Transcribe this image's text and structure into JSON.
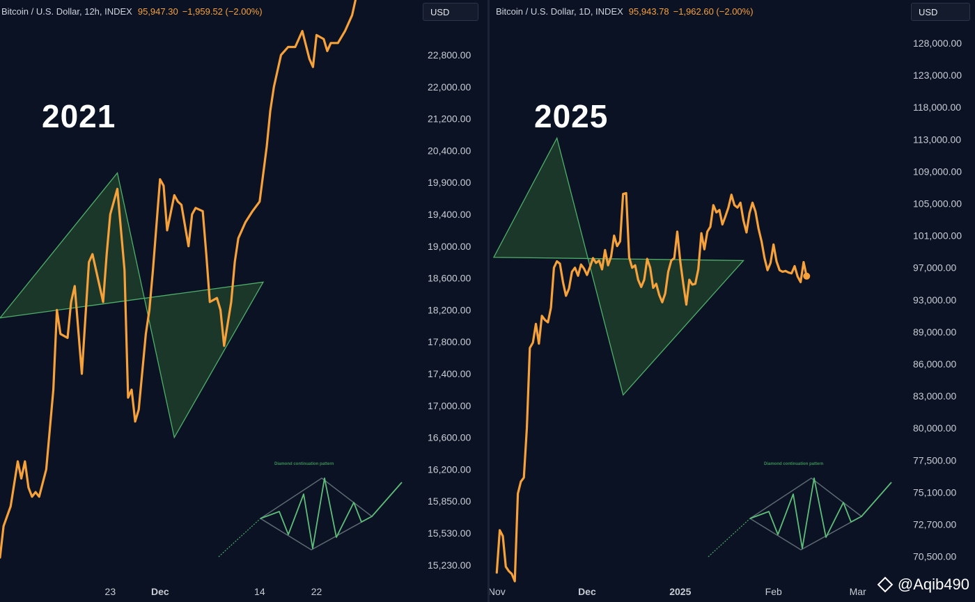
{
  "watermark": "@Aqib490",
  "chart_data": [
    {
      "type": "line",
      "title": "2021",
      "header": {
        "symbol": "Bitcoin / U.S. Dollar, 12h, INDEX",
        "price": "95,947.30",
        "change": "−1,959.52 (−2.00%)"
      },
      "currency": "USD",
      "y_tick_labels": [
        "22,800.00",
        "22,000.00",
        "21,200.00",
        "20,400.00",
        "19,900.00",
        "19,400.00",
        "19,000.00",
        "18,600.00",
        "18,200.00",
        "17,800.00",
        "17,400.00",
        "17,000.00",
        "16,600.00",
        "16,200.00",
        "15,850.00",
        "15,530.00",
        "15,230.00"
      ],
      "y_tick_values": [
        22800,
        22000,
        21200,
        20400,
        19900,
        19400,
        19000,
        18600,
        18200,
        17800,
        17400,
        17000,
        16600,
        16200,
        15850,
        15530,
        15230
      ],
      "x_tick_labels": [
        "23",
        "Dec",
        "14",
        "22"
      ],
      "x_tick_values": [
        23,
        30,
        44,
        52
      ],
      "xlim": [
        7.5,
        63.5
      ],
      "x": [
        7.5,
        8,
        9,
        10,
        10.5,
        11,
        11.5,
        12,
        12.5,
        13,
        14,
        15,
        15.5,
        16,
        17,
        17.5,
        18,
        19,
        20,
        20.5,
        21,
        22,
        22.5,
        23,
        24,
        25,
        25.5,
        26,
        26.5,
        27,
        28,
        28.5,
        29,
        30,
        30.5,
        31,
        32,
        32.5,
        33,
        34,
        34.5,
        35,
        36,
        36.5,
        37,
        38,
        38.5,
        39,
        40,
        40.5,
        41,
        42,
        43,
        44,
        45,
        45.5,
        46,
        47,
        47.5,
        48,
        49,
        49.5,
        50,
        51,
        51.5,
        52,
        53,
        53.5,
        54,
        55,
        56,
        57,
        57.5
      ],
      "y": [
        15300,
        15600,
        15800,
        16300,
        16100,
        16300,
        16000,
        15900,
        15950,
        15900,
        16200,
        17200,
        18200,
        17900,
        17850,
        18300,
        18500,
        17400,
        18800,
        18900,
        18700,
        18300,
        18900,
        19400,
        19800,
        18700,
        17100,
        17200,
        16800,
        16950,
        17900,
        18200,
        18700,
        19950,
        19850,
        19200,
        19700,
        19600,
        19550,
        19000,
        19400,
        19500,
        19450,
        18900,
        18300,
        18350,
        18200,
        17750,
        18300,
        18800,
        19100,
        19300,
        19450,
        19600,
        20500,
        21400,
        22000,
        22800,
        22900,
        23000,
        23000,
        23200,
        23400,
        22700,
        22500,
        23300,
        23200,
        22900,
        23100,
        23100,
        23400,
        23800,
        24200
      ],
      "diamond": [
        [
          7.5,
          18100
        ],
        [
          24,
          20050
        ],
        [
          32,
          16600
        ],
        [
          44.5,
          18550
        ]
      ],
      "inset": {
        "title": "Diamond continuation pattern"
      }
    },
    {
      "type": "line",
      "title": "2025",
      "header": {
        "symbol": "Bitcoin / U.S. Dollar, 1D, INDEX",
        "price": "95,943.78",
        "change": "−1,962.60 (−2.00%)"
      },
      "currency": "USD",
      "y_tick_labels": [
        "128,000.00",
        "123,000.00",
        "118,000.00",
        "113,000.00",
        "109,000.00",
        "105,000.00",
        "101,000.00",
        "97,000.00",
        "93,000.00",
        "89,000.00",
        "86,000.00",
        "83,000.00",
        "80,000.00",
        "77,500.00",
        "75,100.00",
        "72,700.00",
        "70,500.00"
      ],
      "y_tick_values": [
        128000,
        123000,
        118000,
        113000,
        109000,
        105000,
        101000,
        97000,
        93000,
        89000,
        86000,
        83000,
        80000,
        77500,
        75100,
        72700,
        70500
      ],
      "x_tick_labels": [
        "Nov",
        "Dec",
        "2025",
        "Feb",
        "Mar"
      ],
      "x_tick_values": [
        1,
        31,
        62,
        93,
        121
      ],
      "xlim": [
        0,
        122
      ],
      "x": [
        1,
        2,
        3,
        4,
        5,
        6,
        7,
        8,
        9,
        10,
        11,
        12,
        13,
        14,
        15,
        16,
        17,
        18,
        19,
        20,
        21,
        22,
        23,
        24,
        25,
        26,
        27,
        28,
        29,
        30,
        31,
        32,
        33,
        34,
        35,
        36,
        37,
        38,
        39,
        40,
        41,
        42,
        43,
        44,
        45,
        46,
        47,
        48,
        49,
        50,
        51,
        52,
        53,
        54,
        55,
        56,
        57,
        58,
        59,
        60,
        61,
        62,
        63,
        64,
        65,
        66,
        67,
        68,
        69,
        70,
        71,
        72,
        73,
        74,
        75,
        76,
        77,
        78,
        79,
        80,
        81,
        82,
        83,
        84,
        85,
        86,
        87,
        88,
        89,
        90,
        91,
        92,
        93,
        94,
        95,
        96,
        97,
        98,
        99,
        100,
        101,
        102,
        103,
        104
      ],
      "y": [
        69400,
        72300,
        71900,
        69800,
        69500,
        69300,
        68800,
        75000,
        75900,
        76200,
        80000,
        87500,
        88000,
        90000,
        87900,
        91000,
        90500,
        90200,
        92000,
        97000,
        97800,
        97500,
        95200,
        93500,
        94400,
        96500,
        97000,
        96000,
        97400,
        96900,
        96100,
        97100,
        98200,
        97600,
        97900,
        96800,
        99200,
        97300,
        98400,
        101000,
        99700,
        100300,
        106200,
        106300,
        98300,
        97000,
        97300,
        95500,
        94600,
        95500,
        98100,
        97000,
        94500,
        95000,
        93600,
        92700,
        93800,
        96500,
        97900,
        98200,
        101500,
        97800,
        95000,
        92400,
        95500,
        94900,
        95000,
        96800,
        101300,
        99300,
        101500,
        102100,
        104800,
        103900,
        104200,
        102400,
        103400,
        104500,
        106100,
        104800,
        104500,
        105100,
        102900,
        101400,
        103800,
        105100,
        104000,
        101900,
        100300,
        98200,
        96700,
        97600,
        99900,
        97800,
        96700,
        96500,
        96600,
        96400,
        96300,
        97200,
        95900,
        95200,
        97700,
        95950
      ],
      "diamond": [
        [
          0,
          98300
        ],
        [
          21,
          113200
        ],
        [
          43,
          83100
        ],
        [
          83,
          97900
        ]
      ],
      "inset": {
        "title": "Diamond continuation pattern"
      }
    }
  ]
}
